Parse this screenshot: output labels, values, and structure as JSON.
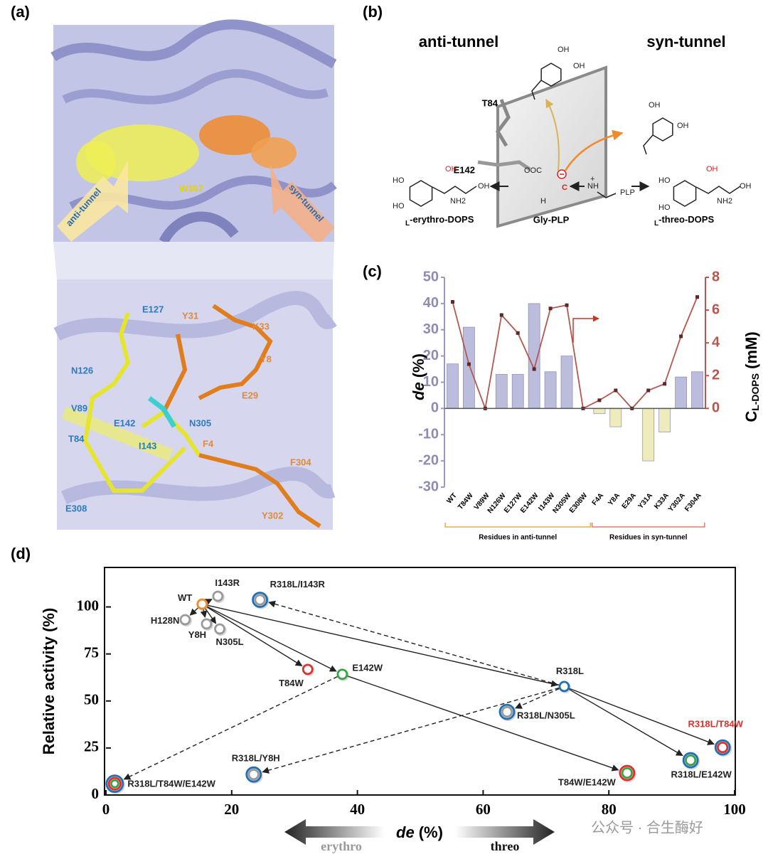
{
  "figure": {
    "a": {
      "label": "(a)",
      "anti": "anti-tunnel",
      "syn": "syn-tunnel",
      "center": "W307",
      "residues": [
        "E127",
        "Y31",
        "K33",
        "N126",
        "Y8",
        "V89",
        "E29",
        "E142",
        "N305",
        "T84",
        "I143",
        "F4",
        "F304",
        "E308",
        "Y302"
      ]
    },
    "b": {
      "label": "(b)",
      "anti": "anti-tunnel",
      "syn": "syn-tunnel",
      "residues": [
        "T84",
        "E142"
      ],
      "left_product": {
        "prefix": "L",
        "name": "-erythro-DOPS"
      },
      "middle": "Gly-PLP",
      "right_product": {
        "prefix": "L",
        "name": "-threo-DOPS"
      },
      "atoms": [
        "OH",
        "OH",
        "OH",
        "OH",
        "HO",
        "HO",
        "OH",
        "NH2",
        "OH",
        "HO",
        "HO",
        "OH",
        "NH2",
        "OH",
        "OOC",
        "H",
        "NH",
        "PLP",
        "C",
        "+"
      ]
    },
    "c": {
      "label": "(c)"
    },
    "d": {
      "label": "(d)",
      "erythro": "erythro",
      "threo": "threo"
    },
    "watermark": "公众号 · 合生酶好"
  },
  "chart_data": [
    {
      "type": "bar_line",
      "ylabel": {
        "var": "de",
        "unit": "(%)"
      },
      "y2label": {
        "main": "C",
        "sub": "L-DOPS",
        "unit": "(mM)"
      },
      "category_groups": [
        {
          "name": "Residues in anti-tunnel",
          "color": "#d9b25a",
          "categories": [
            "WT",
            "T84W",
            "V89W",
            "N126W",
            "E127W",
            "E142W",
            "I143W",
            "N305W",
            "E308W"
          ]
        },
        {
          "name": "Residues in syn-tunnel",
          "color": "#d08070",
          "categories": [
            "F4A",
            "Y8A",
            "E29A",
            "Y31A",
            "K33A",
            "Y302A",
            "F304A"
          ]
        }
      ],
      "series": [
        {
          "type": "bar",
          "color": "#bcbcdc",
          "negative_color": "#efecbc",
          "values": [
            17,
            31,
            0,
            13,
            13,
            40,
            14,
            20,
            0,
            -2,
            -7,
            0,
            -20,
            -9,
            12,
            14
          ]
        },
        {
          "type": "line",
          "axis": "y2",
          "color": "#b5574f",
          "values": [
            6.5,
            2.7,
            0,
            5.7,
            4.6,
            2.4,
            6.1,
            6.3,
            0,
            0.5,
            1.1,
            0,
            1.1,
            1.5,
            4.4,
            6.8
          ]
        }
      ],
      "ylim": [
        -30,
        50
      ],
      "yticks": [
        -30,
        -20,
        -10,
        0,
        10,
        20,
        30,
        40,
        50
      ],
      "y2lim": [
        -4.8,
        8
      ],
      "y2ticks": [
        0,
        2,
        4,
        6,
        8
      ]
    },
    {
      "type": "scatter",
      "xlabel": {
        "var": "de",
        "unit": "(%)"
      },
      "ylabel": "Relative activity (%)",
      "xlim": [
        0,
        100
      ],
      "xticks": [
        0,
        20,
        40,
        60,
        80,
        100
      ],
      "ylim": [
        0,
        121
      ],
      "yticks": [
        0,
        25,
        50,
        75,
        100
      ],
      "points": [
        {
          "name": "WT",
          "x": 15.3,
          "y": 101.5,
          "rings": [
            "#f08a2a"
          ]
        },
        {
          "name": "I143R",
          "x": 17.8,
          "y": 105.7,
          "rings": [
            "#9a9a9a"
          ]
        },
        {
          "name": "H128N",
          "x": 12.6,
          "y": 93.2,
          "rings": [
            "#9a9a9a"
          ]
        },
        {
          "name": "Y8H",
          "x": 16.0,
          "y": 91.0,
          "rings": [
            "#9a9a9a"
          ]
        },
        {
          "name": "N305L",
          "x": 18.1,
          "y": 88.3,
          "rings": [
            "#9a9a9a"
          ]
        },
        {
          "name": "R318L/I143R",
          "x": 24.5,
          "y": 103.8,
          "rings": [
            "#1f6fb5",
            "#9a9a9a"
          ]
        },
        {
          "name": "T84W",
          "x": 32.1,
          "y": 66.8,
          "rings": [
            "#e0302a"
          ]
        },
        {
          "name": "E142W",
          "x": 37.6,
          "y": 64.2,
          "rings": [
            "#3aa34a"
          ]
        },
        {
          "name": "R318L",
          "x": 72.9,
          "y": 57.7,
          "rings": [
            "#1f6fb5"
          ]
        },
        {
          "name": "R318L/N305L",
          "x": 63.8,
          "y": 44.2,
          "rings": [
            "#1f6fb5",
            "#9a9a9a"
          ]
        },
        {
          "name": "R318L/Y8H",
          "x": 23.5,
          "y": 10.9,
          "rings": [
            "#1f6fb5",
            "#9a9a9a"
          ]
        },
        {
          "name": "R318L/T84W/E142W",
          "x": 1.4,
          "y": 6.0,
          "rings": [
            "#1f6fb5",
            "#e0302a",
            "#3aa34a"
          ]
        },
        {
          "name": "T84W/E142W",
          "x": 82.9,
          "y": 11.7,
          "rings": [
            "#e0302a",
            "#3aa34a"
          ]
        },
        {
          "name": "R318L/E142W",
          "x": 93.0,
          "y": 18.5,
          "rings": [
            "#1f6fb5",
            "#3aa34a"
          ]
        },
        {
          "name": "R318L/T84W",
          "x": 98.1,
          "y": 25.3,
          "rings": [
            "#1f6fb5",
            "#e0302a"
          ],
          "label_color": "#e0302a"
        }
      ],
      "arrows": [
        {
          "from": "WT",
          "to": "I143R",
          "dashed": false
        },
        {
          "from": "WT",
          "to": "H128N",
          "dashed": false
        },
        {
          "from": "WT",
          "to": "Y8H",
          "dashed": false
        },
        {
          "from": "WT",
          "to": "N305L",
          "dashed": false
        },
        {
          "from": "WT",
          "to": "T84W",
          "dashed": false
        },
        {
          "from": "WT",
          "to": "E142W",
          "dashed": false
        },
        {
          "from": "WT",
          "to": "R318L",
          "dashed": false
        },
        {
          "from": "E142W",
          "to": "T84W/E142W",
          "dashed": false
        },
        {
          "from": "R318L",
          "to": "R318L/E142W",
          "dashed": false
        },
        {
          "from": "R318L",
          "to": "R318L/T84W",
          "dashed": false
        },
        {
          "from": "R318L",
          "to": "R318L/I143R",
          "dashed": true
        },
        {
          "from": "R318L",
          "to": "R318L/N305L",
          "dashed": true
        },
        {
          "from": "R318L",
          "to": "R318L/Y8H",
          "dashed": true
        },
        {
          "from": "E142W",
          "to": "R318L/T84W/E142W",
          "dashed": true
        }
      ]
    }
  ]
}
